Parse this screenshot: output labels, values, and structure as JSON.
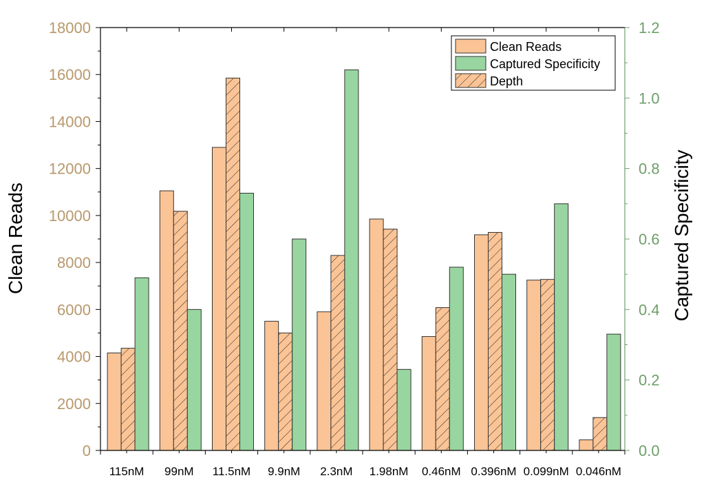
{
  "chart_data": {
    "type": "bar",
    "categories": [
      "115nM",
      "99nM",
      "11.5nM",
      "9.9nM",
      "2.3nM",
      "1.98nM",
      "0.46nM",
      "0.396nM",
      "0.099nM",
      "0.046nM"
    ],
    "series": [
      {
        "name": "Clean Reads",
        "axis": "left",
        "values": [
          4150,
          11050,
          12900,
          5500,
          5900,
          9850,
          4850,
          9180,
          7250,
          450
        ],
        "color": "#FBC496"
      },
      {
        "name": "Depth",
        "axis": "left",
        "values": [
          4350,
          10180,
          15850,
          5000,
          8300,
          9420,
          6080,
          9280,
          7280,
          1400
        ],
        "color": "#FBC496",
        "pattern": "hatch"
      },
      {
        "name": "Captured Specificity",
        "axis": "right",
        "values": [
          0.49,
          0.4,
          0.73,
          0.6,
          1.08,
          0.23,
          0.52,
          0.5,
          0.7,
          0.33
        ],
        "color": "#99D5A0"
      }
    ],
    "legend_order": [
      "Clean Reads",
      "Captured Specificity",
      "Depth"
    ],
    "ylabel": "Clean Reads",
    "ylabel_right": "Captured Specificity",
    "ylim": [
      0,
      18000
    ],
    "ylim_right": [
      0,
      1.2
    ],
    "yticks": [
      "0",
      "2000",
      "4000",
      "6000",
      "8000",
      "10000",
      "12000",
      "14000",
      "16000",
      "18000"
    ],
    "yticks_right": [
      "0.0",
      "0.2",
      "0.4",
      "0.6",
      "0.8",
      "1.0",
      "1.2"
    ],
    "legend_position": "top-right",
    "grid": false,
    "left_axis_color": "#B8986C",
    "right_axis_color": "#6E9E6A"
  }
}
